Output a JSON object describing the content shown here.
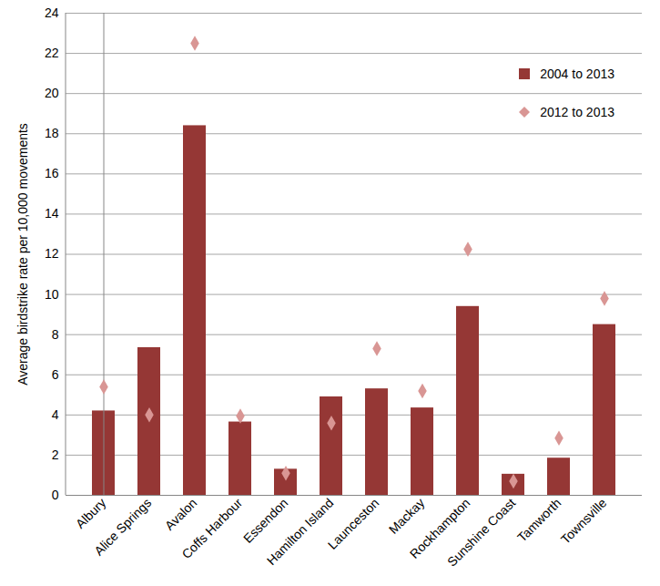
{
  "chart_data": {
    "type": "bar",
    "categories": [
      "Albury",
      "Alice Springs",
      "Avalon",
      "Coffs Harbour",
      "Essendon",
      "Hamilton Island",
      "Launceston",
      "Mackay",
      "Rockhampton",
      "Sunshine Coast",
      "Tamworth",
      "Townsville"
    ],
    "series": [
      {
        "name": "2004 to 2013",
        "type": "bar",
        "color": "#953735",
        "values": [
          4.2,
          7.35,
          18.4,
          3.65,
          1.3,
          4.9,
          5.3,
          4.35,
          9.4,
          1.05,
          1.85,
          8.5
        ]
      },
      {
        "name": "2012 to 2013",
        "type": "scatter",
        "marker": "diamond",
        "color": "#d99694",
        "values": [
          5.4,
          4.0,
          22.5,
          3.95,
          1.1,
          3.6,
          7.3,
          5.2,
          12.25,
          0.7,
          2.85,
          9.8
        ]
      }
    ],
    "y_label": "Average birdstrike rate per 10,000 movements",
    "ylim": [
      0,
      24
    ],
    "yticks": [
      0,
      2,
      4,
      6,
      8,
      10,
      12,
      14,
      16,
      18,
      20,
      22,
      24
    ],
    "grid": true,
    "legend": "top-right"
  }
}
